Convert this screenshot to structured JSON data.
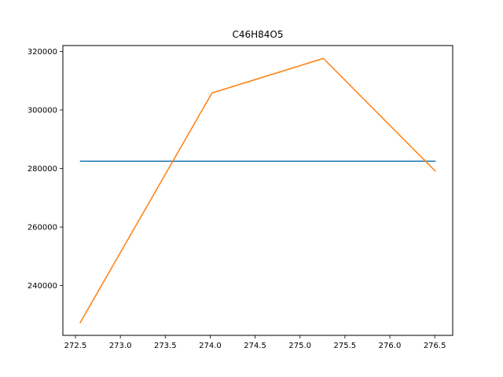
{
  "chart_data": {
    "type": "line",
    "title": "C46H84O5",
    "xlabel": "",
    "ylabel": "",
    "xlim": [
      272.36,
      276.7
    ],
    "ylim": [
      223000,
      322000
    ],
    "x_ticks": [
      272.5,
      273.0,
      273.5,
      274.0,
      274.5,
      275.0,
      275.5,
      276.0,
      276.5
    ],
    "x_tick_labels": [
      "272.5",
      "273.0",
      "273.5",
      "274.0",
      "274.5",
      "275.0",
      "275.5",
      "276.0",
      "276.5"
    ],
    "y_ticks": [
      240000,
      260000,
      280000,
      300000,
      320000
    ],
    "y_tick_labels": [
      "240000",
      "260000",
      "280000",
      "300000",
      "320000"
    ],
    "grid": false,
    "series": [
      {
        "color": "#1f77b4",
        "x": [
          272.55,
          276.51
        ],
        "y": [
          282500,
          282500
        ]
      },
      {
        "color": "#ff7f0e",
        "x": [
          272.55,
          274.02,
          275.26,
          276.51
        ],
        "y": [
          227200,
          305800,
          317600,
          279000
        ]
      }
    ]
  }
}
